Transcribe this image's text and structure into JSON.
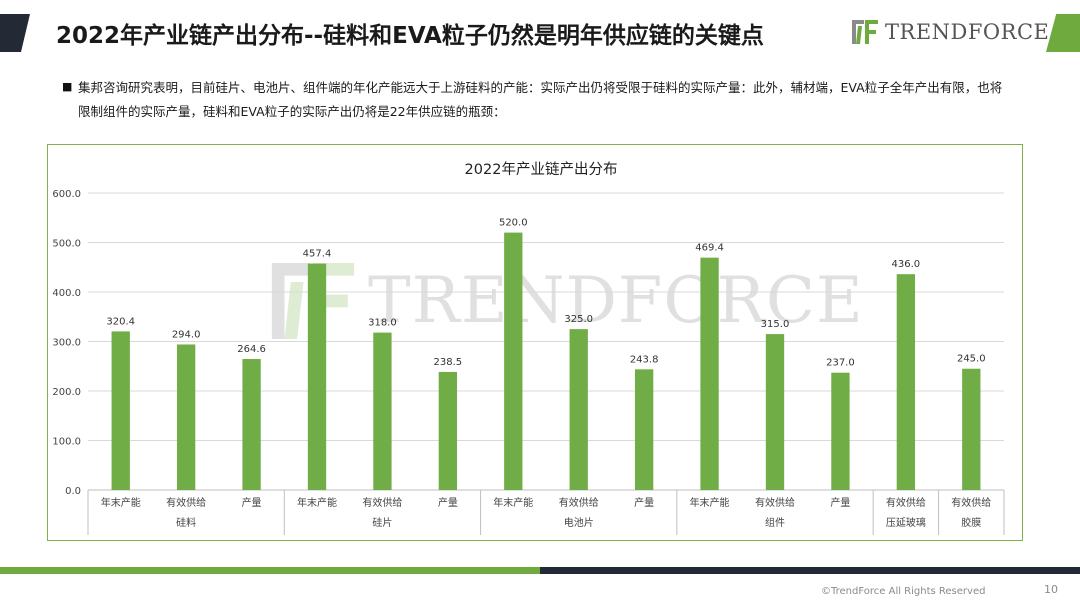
{
  "slide": {
    "title": "2022年产业链产出分布--硅料和EVA粒子仍然是明年供应链的关键点",
    "brand": "TRENDFORCE",
    "paragraph": "集邦咨询研究表明，目前硅片、电池片、组件端的年化产能远大于上游硅料的产能：实际产出仍将受限于硅料的实际产量：此外，辅材端，EVA粒子全年产出有限，也将限制组件的实际产量，硅料和EVA粒子的实际产出仍将是22年供应链的瓶颈：",
    "watermark": "TRENDFORCE",
    "copyright": "©TrendForce All Rights Reserved",
    "page_number": "10"
  },
  "colors": {
    "bar": "#70ad47",
    "accent_green": "#6faa3f",
    "dark": "#232a36",
    "frame": "#7fb34a"
  },
  "chart_data": {
    "type": "bar",
    "title": "2022年产业链产出分布",
    "ylim": [
      0,
      600
    ],
    "yticks": [
      "0.0",
      "100.0",
      "200.0",
      "300.0",
      "400.0",
      "500.0",
      "600.0"
    ],
    "grid": true,
    "groups": [
      {
        "name": "硅料",
        "categories": [
          "年末产能",
          "有效供给",
          "产量"
        ],
        "values": [
          320.4,
          294.0,
          264.6
        ]
      },
      {
        "name": "硅片",
        "categories": [
          "年末产能",
          "有效供给",
          "产量"
        ],
        "values": [
          457.4,
          318.0,
          238.5
        ]
      },
      {
        "name": "电池片",
        "categories": [
          "年末产能",
          "有效供给",
          "产量"
        ],
        "values": [
          520.0,
          325.0,
          243.8
        ]
      },
      {
        "name": "组件",
        "categories": [
          "年末产能",
          "有效供给",
          "产量"
        ],
        "values": [
          469.4,
          315.0,
          237.0
        ]
      },
      {
        "name": "压延玻璃",
        "categories": [
          "有效供给"
        ],
        "values": [
          436.0
        ]
      },
      {
        "name": "胶膜",
        "categories": [
          "有效供给"
        ],
        "values": [
          245.0
        ]
      }
    ]
  }
}
